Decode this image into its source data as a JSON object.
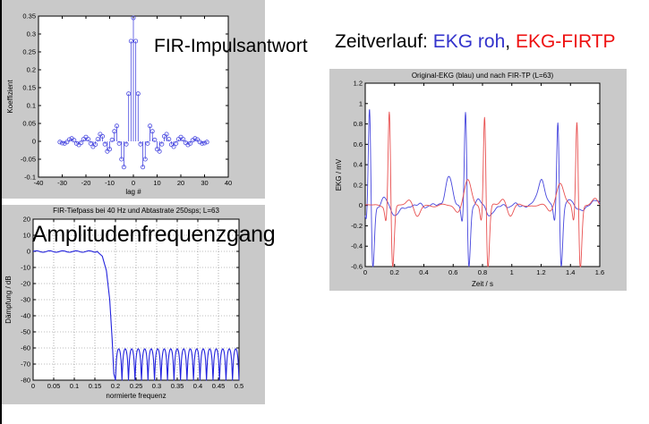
{
  "colors": {
    "panel_bg": "#c9c9c9",
    "plot_bg": "#ffffff",
    "axis": "#000000",
    "left_border": "#000000",
    "heading_text": "#000000",
    "heading_blue": "#3333cc",
    "heading_red": "#ee1111"
  },
  "overlays": {
    "impulse_label": "FIR-Impulsantwort",
    "amplitude_label": "Amplitudenfrequenzgang",
    "heading": {
      "prefix": "Zeitverlauf: ",
      "raw_label": "EKG roh",
      "separator": ", ",
      "filtered_label": "EKG-FIRTP"
    }
  },
  "chart_data": [
    {
      "id": "impulse-response",
      "type": "stem",
      "title": "",
      "xlabel": "lag #",
      "ylabel": "Koeffizient",
      "xlim": [
        -40,
        40
      ],
      "ylim": [
        -0.1,
        0.35
      ],
      "xticks": [
        -40,
        -30,
        -20,
        -10,
        0,
        10,
        20,
        30,
        40
      ],
      "yticks": [
        0.35,
        0.3,
        0.25,
        0.2,
        0.15,
        0.1,
        0.05,
        0,
        -0.05,
        -0.1
      ],
      "grid": false,
      "symmetric": true,
      "lags_abs": [
        0,
        1,
        2,
        3,
        4,
        5,
        6,
        7,
        8,
        9,
        10,
        11,
        12,
        13,
        14,
        15,
        16,
        17,
        18,
        19,
        20,
        21,
        22,
        23,
        24,
        25,
        26,
        27,
        28,
        29,
        30,
        31
      ],
      "values": [
        0.345,
        0.28,
        0.133,
        -0.008,
        -0.072,
        -0.05,
        -0.006,
        0.043,
        0.028,
        0.004,
        -0.022,
        -0.028,
        -0.008,
        0.014,
        0.02,
        0.006,
        -0.009,
        -0.015,
        -0.006,
        0.006,
        0.012,
        0.006,
        -0.004,
        -0.01,
        -0.006,
        0.003,
        0.008,
        0.005,
        -0.002,
        -0.006,
        -0.005,
        -0.002
      ],
      "color": "#4a4ae0"
    },
    {
      "id": "frequency-response",
      "type": "line",
      "title": "FIR-Tiefpass bei 40 Hz und Abtastrate 250sps; L=63",
      "xlabel": "normierte frequenz",
      "ylabel": "Dämpfung / dB",
      "xlim": [
        0,
        0.5
      ],
      "ylim": [
        -80,
        20
      ],
      "xticks": [
        0,
        0.05,
        0.1,
        0.15,
        0.2,
        0.25,
        0.3,
        0.35,
        0.4,
        0.45,
        0.5
      ],
      "yticks": [
        20,
        10,
        0,
        -10,
        -20,
        -30,
        -40,
        -50,
        -60,
        -70,
        -80
      ],
      "grid": true,
      "passband": {
        "level_db": 0,
        "ripple_db": 0.9,
        "ripple_period": 0.032,
        "edge": 0.155
      },
      "transition": [
        [
          0.155,
          0
        ],
        [
          0.168,
          -3
        ],
        [
          0.178,
          -12
        ],
        [
          0.186,
          -30
        ],
        [
          0.192,
          -55
        ],
        [
          0.196,
          -76
        ]
      ],
      "stopband": {
        "start": 0.2,
        "end": 0.5,
        "lobe_top_db": -60.5,
        "floor_db": -80,
        "lobes": 19
      },
      "color": "#2222dd"
    },
    {
      "id": "ecg-time-series",
      "type": "line",
      "title": "Original-EKG (blau) und nach FIR-TP (L=63)",
      "xlabel": "Zeit / s",
      "ylabel": "EKG / mV",
      "xlim": [
        0,
        1.6
      ],
      "ylim": [
        -0.6,
        1.2
      ],
      "xticks": [
        0,
        0.2,
        0.4,
        0.6,
        0.8,
        1,
        1.2,
        1.4,
        1.6
      ],
      "yticks": [
        1.2,
        1,
        0.8,
        0.6,
        0.4,
        0.2,
        0,
        -0.2,
        -0.4,
        -0.6
      ],
      "grid": false,
      "series": [
        {
          "name": "EKG roh (blau)",
          "color": "#4646dd",
          "r_peaks": [
            0.03,
            0.685,
            1.315
          ],
          "r_amps": [
            1.04,
            1.0,
            0.94
          ],
          "q_depth": -0.16,
          "s_depth": -0.65,
          "t_peaks": [
            0.57,
            1.2
          ],
          "t_amps": [
            0.27,
            0.26
          ],
          "extra_bumps": [
            [
              0.13,
              0.06
            ],
            [
              0.2,
              -0.09
            ],
            [
              0.25,
              -0.05
            ],
            [
              0.77,
              0.06
            ],
            [
              0.84,
              -0.09
            ],
            [
              0.89,
              -0.04
            ],
            [
              1.4,
              0.06
            ],
            [
              1.47,
              -0.07
            ],
            [
              1.56,
              0.05
            ]
          ],
          "noise": {
            "amp": 0.016,
            "freqs": [
              9,
              15.7,
              23
            ]
          }
        },
        {
          "name": "EKG-FIRTP (rot)",
          "color": "#e85050",
          "r_peaks": [
            0.165,
            0.815,
            1.445
          ],
          "r_amps": [
            1.02,
            0.98,
            0.93
          ],
          "q_depth": -0.16,
          "s_depth": -0.65,
          "t_peaks": [
            0.7,
            1.33
          ],
          "t_amps": [
            0.24,
            0.22
          ],
          "extra_bumps": [
            [
              0.3,
              0.07
            ],
            [
              0.355,
              -0.12
            ],
            [
              0.63,
              -0.06
            ],
            [
              0.94,
              0.07
            ],
            [
              0.99,
              -0.1
            ],
            [
              1.26,
              -0.05
            ],
            [
              1.57,
              0.06
            ]
          ],
          "noise": {
            "amp": 0.01,
            "freqs": [
              6,
              11.5
            ]
          }
        }
      ]
    }
  ]
}
